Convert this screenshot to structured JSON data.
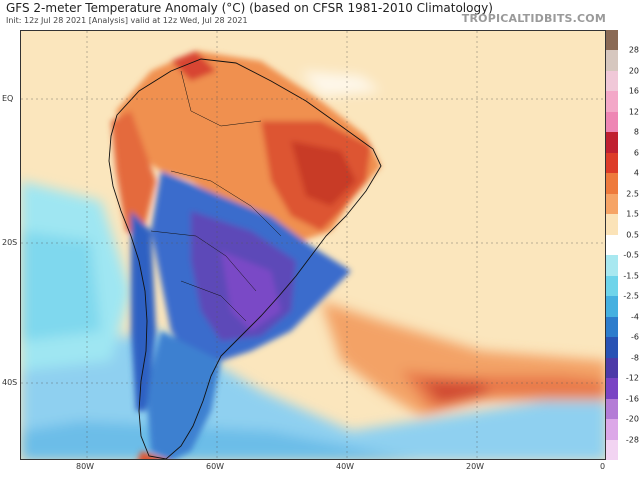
{
  "header": {
    "title": "GFS 2-meter Temperature Anomaly (°C) (based on CFSR 1981-2010 Climatology)",
    "subtitle": "Init: 12z Jul 28 2021   [Analysis]   valid at 12z Wed, Jul 28 2021",
    "brand": "TROPICALTIDBITS.COM"
  },
  "map": {
    "y_labels": [
      "EQ",
      "20S",
      "40S"
    ],
    "x_labels": [
      "80W",
      "60W",
      "40W",
      "20W",
      "0"
    ]
  },
  "colorbar": {
    "labels": [
      "28",
      "20",
      "16",
      "12",
      "8",
      "6",
      "4",
      "2.5",
      "1.5",
      "0.5",
      "-0.5",
      "-1.5",
      "-2.5",
      "-4",
      "-6",
      "-8",
      "-12",
      "-16",
      "-20",
      "-28"
    ],
    "colors": [
      "#8a6a55",
      "#d6c7bf",
      "#f0c8d8",
      "#f3a8c8",
      "#ee86b4",
      "#c02030",
      "#dd3c28",
      "#ee7a3c",
      "#f6a466",
      "#fbe3b8",
      "#ffffff",
      "#a8e8f0",
      "#6ed4ea",
      "#45b0e0",
      "#2d7ccc",
      "#2852b4",
      "#4c3aa8",
      "#7a44c4",
      "#b47cd6",
      "#dca8e8",
      "#f2d4f2"
    ]
  }
}
